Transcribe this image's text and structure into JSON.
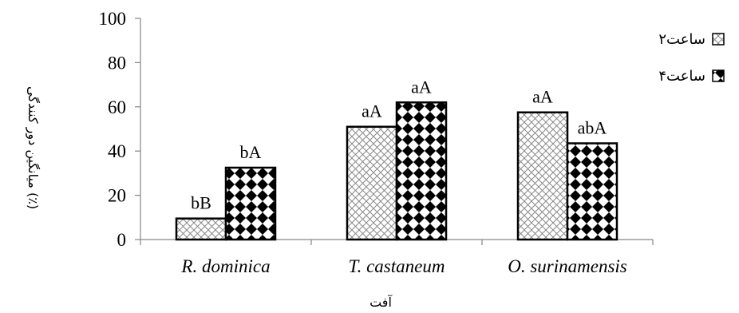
{
  "chart_data": {
    "type": "bar",
    "categories": [
      "R. dominica",
      "T. castaneum",
      "O. surinamensis"
    ],
    "series": [
      {
        "name": "۲ساعت",
        "values": [
          9.5,
          51,
          57.5
        ],
        "labels": [
          "bB",
          "aA",
          "aA"
        ]
      },
      {
        "name": "۴ساعت",
        "values": [
          32.5,
          62,
          43.5
        ],
        "labels": [
          "bA",
          "aA",
          "abA"
        ]
      }
    ],
    "xlabel": "آفت",
    "ylabel": "میانگین دور کنندگی (٪)",
    "ylim": [
      0,
      100
    ],
    "yticks": [
      "0",
      "20",
      "40",
      "60",
      "80",
      "100"
    ],
    "grid": false,
    "legend_position": "right"
  }
}
